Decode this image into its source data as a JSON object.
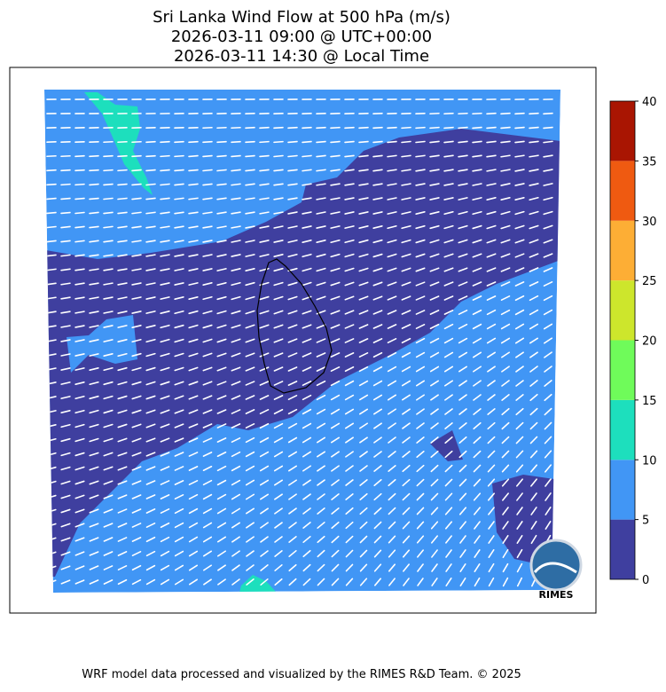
{
  "title": [
    "Sri Lanka Wind Flow at 500 hPa (m/s)",
    "2026-03-11 09:00 @ UTC+00:00",
    "2026-03-11 14:30 @ Local Time"
  ],
  "colorbar": {
    "ticks": [
      0,
      5,
      10,
      15,
      20,
      25,
      30,
      35,
      40
    ],
    "colors": [
      "#3f3f9f",
      "#4196f5",
      "#1ddfbd",
      "#6ffb5a",
      "#cde62c",
      "#fdae35",
      "#ef5a11",
      "#a91502"
    ]
  },
  "logo_text": "RIMES",
  "footer": "WRF model data processed and visualized by the RIMES R&D Team. © 2025"
}
